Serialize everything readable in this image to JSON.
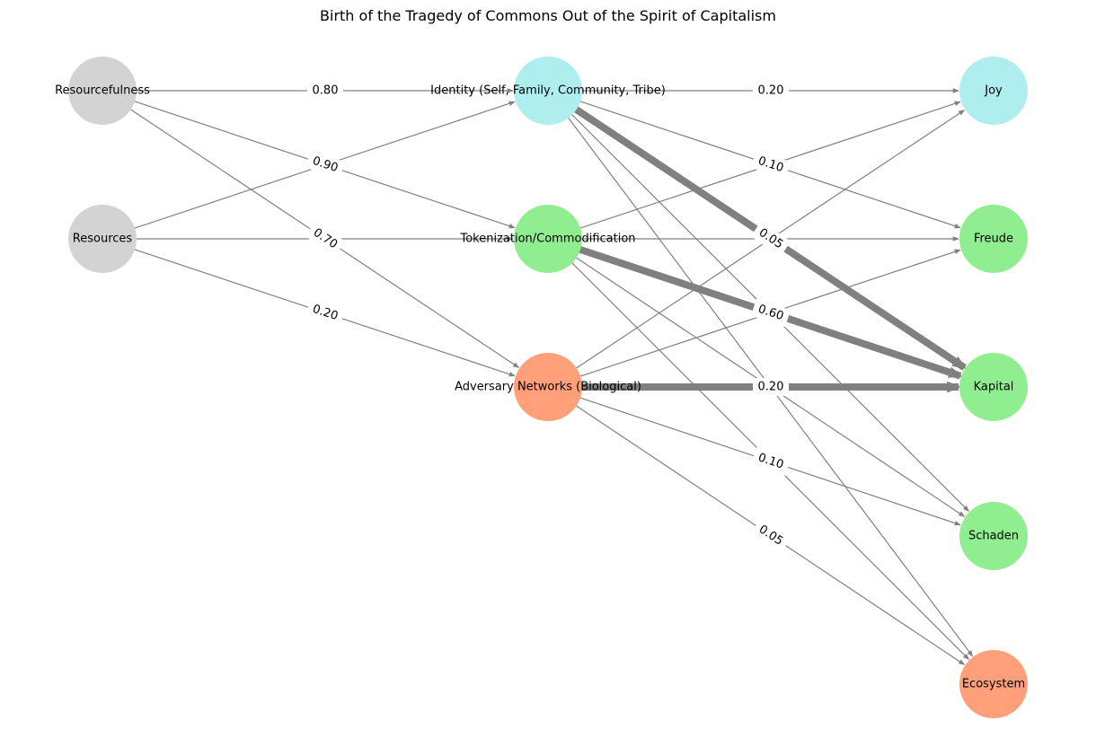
{
  "title": "Birth of the Tragedy of Commons Out of the Spirit of Capitalism",
  "colors": {
    "edge": "#808080",
    "gray": "#d3d3d3",
    "cyan": "#afeeee",
    "green": "#90ee90",
    "salmon": "#ffa07a"
  },
  "nodes": {
    "resourcefulness": {
      "label": "Resourcefulness",
      "color": "gray"
    },
    "resources": {
      "label": "Resources",
      "color": "gray"
    },
    "identity": {
      "label": "Identity (Self, Family, Community, Tribe)",
      "color": "cyan"
    },
    "tokenization": {
      "label": "Tokenization/Commodification",
      "color": "green"
    },
    "adversary": {
      "label": "Adversary Networks (Biological)",
      "color": "salmon"
    },
    "joy": {
      "label": "Joy",
      "color": "cyan"
    },
    "freude": {
      "label": "Freude",
      "color": "green"
    },
    "kapital": {
      "label": "Kapital",
      "color": "green"
    },
    "schaden": {
      "label": "Schaden",
      "color": "green"
    },
    "ecosystem": {
      "label": "Ecosystem",
      "color": "salmon"
    }
  },
  "edges": [
    {
      "from": "resourcefulness",
      "to": "identity",
      "label": "0.80",
      "bold": false
    },
    {
      "from": "resourcefulness",
      "to": "tokenization",
      "label": "0.90",
      "bold": false
    },
    {
      "from": "resourcefulness",
      "to": "adversary",
      "label": "0.70",
      "bold": false
    },
    {
      "from": "resources",
      "to": "identity",
      "label": "",
      "bold": false
    },
    {
      "from": "resources",
      "to": "tokenization",
      "label": "",
      "bold": false
    },
    {
      "from": "resources",
      "to": "adversary",
      "label": "0.20",
      "bold": false
    },
    {
      "from": "identity",
      "to": "joy",
      "label": "0.20",
      "bold": false
    },
    {
      "from": "identity",
      "to": "freude",
      "label": "0.10",
      "bold": false
    },
    {
      "from": "identity",
      "to": "kapital",
      "label": "0.05",
      "bold": true
    },
    {
      "from": "identity",
      "to": "schaden",
      "label": "",
      "bold": false
    },
    {
      "from": "identity",
      "to": "ecosystem",
      "label": "",
      "bold": false
    },
    {
      "from": "tokenization",
      "to": "joy",
      "label": "",
      "bold": false
    },
    {
      "from": "tokenization",
      "to": "freude",
      "label": "",
      "bold": false
    },
    {
      "from": "tokenization",
      "to": "kapital",
      "label": "0.60",
      "bold": true
    },
    {
      "from": "tokenization",
      "to": "schaden",
      "label": "",
      "bold": false
    },
    {
      "from": "tokenization",
      "to": "ecosystem",
      "label": "",
      "bold": false
    },
    {
      "from": "adversary",
      "to": "joy",
      "label": "",
      "bold": false
    },
    {
      "from": "adversary",
      "to": "freude",
      "label": "",
      "bold": false
    },
    {
      "from": "adversary",
      "to": "kapital",
      "label": "0.20",
      "bold": true
    },
    {
      "from": "adversary",
      "to": "schaden",
      "label": "0.10",
      "bold": false
    },
    {
      "from": "adversary",
      "to": "ecosystem",
      "label": "0.05",
      "bold": false
    }
  ]
}
